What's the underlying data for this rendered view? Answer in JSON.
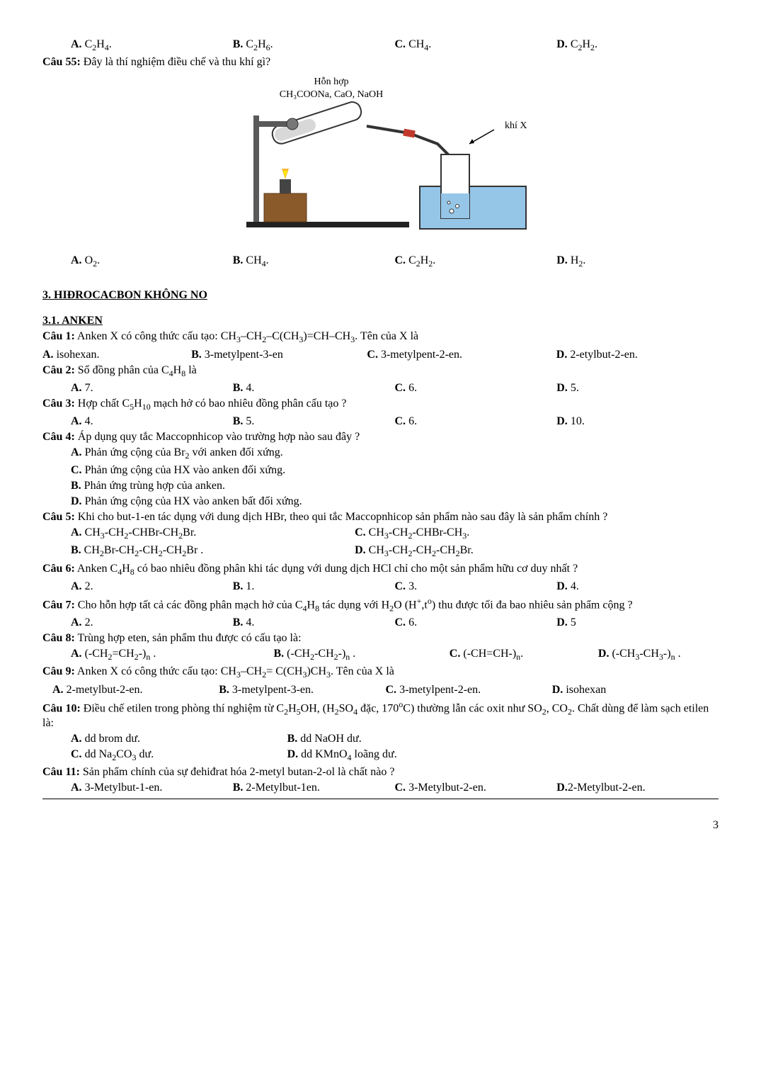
{
  "q54_opts": {
    "a": "A. C₂H₄.",
    "b": "B. C₂H₆.",
    "c": "C. CH₄.",
    "d": "D. C₂H₂."
  },
  "q55": {
    "text": "Câu 55: Đây là thí nghiệm điều chế và thu khí gì?",
    "diagram": {
      "label_top": "Hỗn hợp",
      "label_mix": "CH₃COONa, CaO, NaOH",
      "label_gas": "khí X"
    },
    "opts": {
      "a": "A. O₂.",
      "b": "B. CH₄.",
      "c": "C. C₂H₂.",
      "d": "D. H₂."
    }
  },
  "section3": "3. HIĐROCACBON KHÔNG NO",
  "section31": "3.1. ANKEN",
  "q1": {
    "text": "Câu 1: Anken X có công thức cấu tạo: CH₃–CH₂–C(CH₃)=CH–CH₃. Tên của X là",
    "opts": {
      "a": "A. isohexan.",
      "b": "B. 3-metylpent-3-en",
      "c": "C. 3-metylpent-2-en.",
      "d": "D. 2-etylbut-2-en."
    }
  },
  "q2": {
    "text": "Câu 2: Số đồng phân của C₄H₈ là",
    "opts": {
      "a": "A. 7.",
      "b": "B. 4.",
      "c": "C. 6.",
      "d": "D. 5."
    }
  },
  "q3": {
    "text": "Câu 3: Hợp chất C₅H₁₀ mạch hở có bao nhiêu đồng phân cấu tạo ?",
    "opts": {
      "a": "A. 4.",
      "b": "B. 5.",
      "c": "C. 6.",
      "d": "D. 10."
    }
  },
  "q4": {
    "text": "Câu 4: Áp dụng quy tắc Maccopnhicop vào trường hợp nào sau đây ?",
    "a": "A. Phản ứng cộng của Br₂ với anken đối xứng.",
    "c": "C. Phản ứng cộng của HX vào anken đối xứng.",
    "b": "B. Phản ứng trùng hợp của anken.",
    "d": "D. Phản ứng cộng của HX vào anken bất đối xứng."
  },
  "q5": {
    "text": "Câu 5: Khi cho but-1-en tác dụng với dung dịch HBr, theo qui tắc Maccopnhicop sản phẩm nào sau đây là sản phẩm chính ?",
    "a": "A. CH₃-CH₂-CHBr-CH₂Br.",
    "c": "C. CH₃-CH₂-CHBr-CH₃.",
    "b": "B. CH₂Br-CH₂-CH₂-CH₂Br .",
    "d": "D. CH₃-CH₂-CH₂-CH₂Br."
  },
  "q6": {
    "text": "Câu 6: Anken C₄H₈ có bao nhiêu đồng phân khi tác dụng với dung dịch HCl chỉ cho một sản phẩm hữu cơ duy nhất ?",
    "opts": {
      "a": "A. 2.",
      "b": "B. 1.",
      "c": "C. 3.",
      "d": "D. 4."
    }
  },
  "q7": {
    "text": "Câu 7: Cho hỗn hợp tất cả các đồng phân mạch hở của C₄H₈ tác dụng với H₂O (H⁺,tº) thu được tối đa bao nhiêu sản phẩm cộng ?",
    "opts": {
      "a": "A. 2.",
      "b": "B. 4.",
      "c": "C. 6.",
      "d": "D. 5"
    }
  },
  "q8": {
    "text": "Câu 8: Trùng hợp eten, sản phẩm thu được có cấu tạo là:",
    "opts": {
      "a": "A. (-CH₂=CH₂-)ₙ .",
      "b": "B. (-CH₂-CH₂-)ₙ .",
      "c": "C. (-CH=CH-)ₙ.",
      "d": "D. (-CH₃-CH₃-)ₙ ."
    }
  },
  "q9": {
    "text": "Câu 9: Anken X có công thức cấu tạo: CH₃–CH₂= C(CH₃)CH₃. Tên của X là",
    "opts": {
      "a": "A. 2-metylbut-2-en.",
      "b": "B. 3-metylpent-3-en.",
      "c": "C. 3-metylpent-2-en.",
      "d": "D. isohexan"
    }
  },
  "q10": {
    "text": "Câu 10: Điều chế etilen trong phòng thí nghiệm từ C₂H₅OH, (H₂SO₄ đặc, 170ºC) thường lẫn các oxit như SO₂, CO₂. Chất dùng để làm sạch etilen là:",
    "a": "A. dd brom dư.",
    "b": "B. dd NaOH dư.",
    "c": "C. dd Na₂CO₃ dư.",
    "d": "D. dd KMnO₄ loãng dư."
  },
  "q11": {
    "text": "Câu 11: Sản phẩm chính của sự đehiđrat hóa 2-metyl butan-2-ol là chất nào ?",
    "opts": {
      "a": "A. 3-Metylbut-1-en.",
      "b": "B. 2-Metylbut-1en.",
      "c": "C. 3-Metylbut-2-en.",
      "d": "D.2-Metylbut-2-en."
    }
  },
  "page_num": "3",
  "colors": {
    "water": "#95c6e8",
    "flame_outer": "#f7b733",
    "flame_inner": "#ffea00",
    "stand": "#8b5a2b",
    "red": "#c0392b",
    "steel": "#5a5a5a"
  }
}
